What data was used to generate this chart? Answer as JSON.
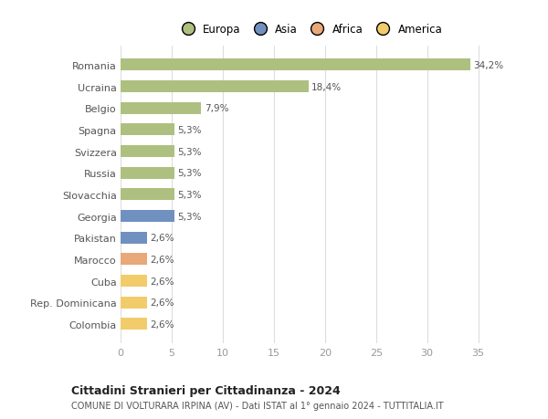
{
  "categories": [
    "Colombia",
    "Rep. Dominicana",
    "Cuba",
    "Marocco",
    "Pakistan",
    "Georgia",
    "Slovacchia",
    "Russia",
    "Svizzera",
    "Spagna",
    "Belgio",
    "Ucraina",
    "Romania"
  ],
  "values": [
    2.6,
    2.6,
    2.6,
    2.6,
    2.6,
    5.3,
    5.3,
    5.3,
    5.3,
    5.3,
    7.9,
    18.4,
    34.2
  ],
  "labels": [
    "2,6%",
    "2,6%",
    "2,6%",
    "2,6%",
    "2,6%",
    "5,3%",
    "5,3%",
    "5,3%",
    "5,3%",
    "5,3%",
    "7,9%",
    "18,4%",
    "34,2%"
  ],
  "colors": [
    "#f2cb6b",
    "#f2cb6b",
    "#f2cb6b",
    "#e8a87a",
    "#7090bf",
    "#7090bf",
    "#adc080",
    "#adc080",
    "#adc080",
    "#adc080",
    "#adc080",
    "#adc080",
    "#adc080"
  ],
  "legend": [
    {
      "label": "Europa",
      "color": "#adc080"
    },
    {
      "label": "Asia",
      "color": "#7090bf"
    },
    {
      "label": "Africa",
      "color": "#e8a87a"
    },
    {
      "label": "America",
      "color": "#f2cb6b"
    }
  ],
  "title1": "Cittadini Stranieri per Cittadinanza - 2024",
  "title2": "COMUNE DI VOLTURARA IRPINA (AV) - Dati ISTAT al 1° gennaio 2024 - TUTTITALIA.IT",
  "xlim": [
    0,
    37
  ],
  "xticks": [
    0,
    5,
    10,
    15,
    20,
    25,
    30,
    35
  ],
  "bg_color": "#ffffff",
  "grid_color": "#dddddd",
  "bar_height": 0.55
}
